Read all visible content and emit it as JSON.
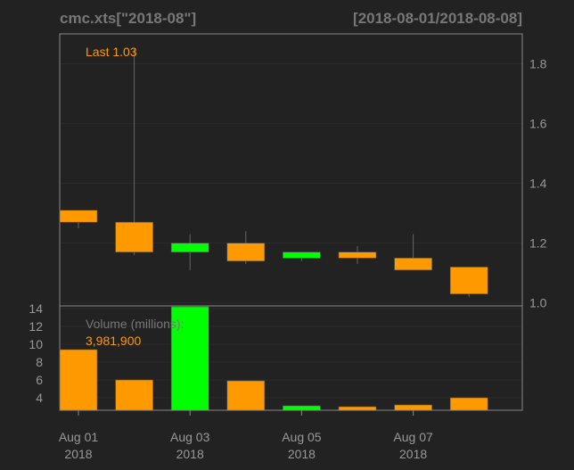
{
  "chart_data": {
    "type": "candlestick",
    "title": "cmc.xts[\"2018-08\"]",
    "date_range": "[2018-08-01/2018-08-08]",
    "colors": {
      "background": "#222222",
      "title": "#777777",
      "up": "#00ff00",
      "down": "#ff9900",
      "axis_text": "#999999",
      "frame": "#888888",
      "grid": "#2b2b2b"
    },
    "x_tick_labels": [
      {
        "day": "Aug 01",
        "year": "2018",
        "index": 0
      },
      {
        "day": "Aug 03",
        "year": "2018",
        "index": 2
      },
      {
        "day": "Aug 05",
        "year": "2018",
        "index": 4
      },
      {
        "day": "Aug 07",
        "year": "2018",
        "index": 6
      }
    ],
    "price_panel": {
      "last_label": "Last 1.03",
      "ylim": [
        0.99,
        1.9
      ],
      "y_ticks": [
        1.0,
        1.2,
        1.4,
        1.6,
        1.8
      ],
      "candles": [
        {
          "date": "2018-08-01",
          "open": 1.31,
          "high": 1.31,
          "low": 1.25,
          "close": 1.27
        },
        {
          "date": "2018-08-02",
          "open": 1.27,
          "high": 1.85,
          "low": 1.16,
          "close": 1.17
        },
        {
          "date": "2018-08-03",
          "open": 1.17,
          "high": 1.23,
          "low": 1.11,
          "close": 1.2
        },
        {
          "date": "2018-08-04",
          "open": 1.2,
          "high": 1.24,
          "low": 1.13,
          "close": 1.14
        },
        {
          "date": "2018-08-05",
          "open": 1.15,
          "high": 1.17,
          "low": 1.14,
          "close": 1.17
        },
        {
          "date": "2018-08-06",
          "open": 1.17,
          "high": 1.19,
          "low": 1.13,
          "close": 1.15
        },
        {
          "date": "2018-08-07",
          "open": 1.15,
          "high": 1.23,
          "low": 1.11,
          "close": 1.11
        },
        {
          "date": "2018-08-08",
          "open": 1.12,
          "high": 1.12,
          "low": 1.02,
          "close": 1.03
        }
      ]
    },
    "volume_panel": {
      "label": "Volume (millions):",
      "last_volume": "3,981,900",
      "ylim": [
        2.6,
        14.3
      ],
      "y_ticks": [
        4,
        6,
        8,
        10,
        12,
        14
      ],
      "bars": [
        {
          "date": "2018-08-01",
          "volume": 9.4,
          "direction": "down"
        },
        {
          "date": "2018-08-02",
          "volume": 6.0,
          "direction": "down"
        },
        {
          "date": "2018-08-03",
          "volume": 14.2,
          "direction": "up"
        },
        {
          "date": "2018-08-04",
          "volume": 5.9,
          "direction": "down"
        },
        {
          "date": "2018-08-05",
          "volume": 3.1,
          "direction": "up"
        },
        {
          "date": "2018-08-06",
          "volume": 3.0,
          "direction": "down"
        },
        {
          "date": "2018-08-07",
          "volume": 3.2,
          "direction": "down"
        },
        {
          "date": "2018-08-08",
          "volume": 4.0,
          "direction": "down"
        }
      ]
    }
  }
}
